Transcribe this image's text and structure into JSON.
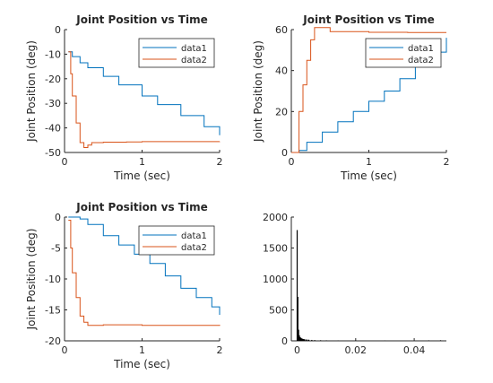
{
  "chart_data": [
    {
      "type": "line",
      "title": "Joint Position vs Time",
      "xlabel": "Time (sec)",
      "ylabel": "Joint Position (deg)",
      "xlim": [
        0,
        2
      ],
      "ylim": [
        -50,
        0
      ],
      "xticks": [
        "0",
        "1",
        "2"
      ],
      "yticks": [
        "-50",
        "-40",
        "-30",
        "-20",
        "-10",
        "0"
      ],
      "grid": false,
      "legend_position": "top-right",
      "series": [
        {
          "name": "data1",
          "color": "#0072BD",
          "x": [
            0.05,
            0.1,
            0.2,
            0.3,
            0.5,
            0.7,
            1.0,
            1.2,
            1.5,
            1.8,
            2.0
          ],
          "y": [
            -9,
            -11,
            -13.5,
            -15.5,
            -19,
            -22.5,
            -27,
            -30.5,
            -35,
            -39.5,
            -43
          ]
        },
        {
          "name": "data2",
          "color": "#D95319",
          "x": [
            0.05,
            0.08,
            0.1,
            0.15,
            0.2,
            0.25,
            0.3,
            0.35,
            0.5,
            0.8,
            1.0,
            1.5,
            2.0
          ],
          "y": [
            -9,
            -18,
            -27,
            -38,
            -46,
            -48,
            -47,
            -46,
            -45.8,
            -45.7,
            -45.6,
            -45.6,
            -45.5
          ]
        }
      ]
    },
    {
      "type": "line",
      "title": "Joint Position vs Time",
      "xlabel": "Time (sec)",
      "ylabel": "Joint Position (deg)",
      "xlim": [
        0,
        2
      ],
      "ylim": [
        0,
        60
      ],
      "xticks": [
        "0",
        "1",
        "2"
      ],
      "yticks": [
        "0",
        "20",
        "40",
        "60"
      ],
      "grid": false,
      "legend_position": "top-right",
      "series": [
        {
          "name": "data1",
          "color": "#0072BD",
          "x": [
            0,
            0.05,
            0.1,
            0.2,
            0.4,
            0.6,
            0.8,
            1.0,
            1.2,
            1.4,
            1.6,
            1.8,
            2.0
          ],
          "y": [
            0,
            0,
            1,
            5,
            10,
            15,
            20,
            25,
            30,
            36,
            42,
            49,
            56
          ]
        },
        {
          "name": "data2",
          "color": "#D95319",
          "x": [
            0,
            0.05,
            0.1,
            0.15,
            0.2,
            0.25,
            0.3,
            0.35,
            0.5,
            1.0,
            1.5,
            2.0
          ],
          "y": [
            0,
            0,
            20,
            33,
            45,
            55,
            61,
            61,
            59,
            58.7,
            58.6,
            58.6
          ]
        }
      ]
    },
    {
      "type": "line",
      "title": "Joint Position vs Time",
      "xlabel": "Time (sec)",
      "ylabel": "Joint Position (deg)",
      "xlim": [
        0,
        2
      ],
      "ylim": [
        -20,
        0
      ],
      "xticks": [
        "0",
        "1",
        "2"
      ],
      "yticks": [
        "-20",
        "-15",
        "-10",
        "-5",
        "0"
      ],
      "grid": false,
      "legend_position": "top-right",
      "series": [
        {
          "name": "data1",
          "color": "#0072BD",
          "x": [
            0.05,
            0.1,
            0.2,
            0.3,
            0.5,
            0.7,
            0.9,
            1.1,
            1.3,
            1.5,
            1.7,
            1.9,
            2.0
          ],
          "y": [
            0,
            0,
            -0.3,
            -1.2,
            -3,
            -4.5,
            -6,
            -7.5,
            -9.5,
            -11.5,
            -13,
            -14.5,
            -15.8
          ]
        },
        {
          "name": "data2",
          "color": "#D95319",
          "x": [
            0.05,
            0.08,
            0.1,
            0.15,
            0.2,
            0.25,
            0.3,
            0.5,
            1.0,
            1.5,
            2.0
          ],
          "y": [
            -0.5,
            -5,
            -9,
            -13,
            -16,
            -17,
            -17.5,
            -17.4,
            -17.5,
            -17.5,
            -17.4
          ]
        }
      ]
    },
    {
      "type": "bar",
      "title": "",
      "xlabel": "",
      "ylabel": "",
      "xlim": [
        -0.002,
        0.051
      ],
      "ylim": [
        0,
        2000
      ],
      "xticks": [
        "0",
        "0.02",
        "0.04"
      ],
      "xtick_values": [
        0,
        0.02,
        0.04
      ],
      "yticks": [
        "0",
        "500",
        "1000",
        "1500",
        "2000"
      ],
      "grid": false,
      "bar_color": "#000000",
      "bin_width": 0.00025,
      "x": [
        0,
        0.00025,
        0.0005,
        0.00075,
        0.001,
        0.00125,
        0.0015,
        0.00175,
        0.002,
        0.00225,
        0.0025,
        0.003,
        0.0035,
        0.004,
        0.005,
        0.006,
        0.008,
        0.01,
        0.014,
        0.02,
        0.03,
        0.045,
        0.049
      ],
      "values": [
        1790,
        710,
        180,
        90,
        60,
        50,
        40,
        35,
        30,
        28,
        25,
        22,
        20,
        18,
        15,
        12,
        10,
        8,
        6,
        6,
        5,
        8,
        10
      ]
    }
  ]
}
